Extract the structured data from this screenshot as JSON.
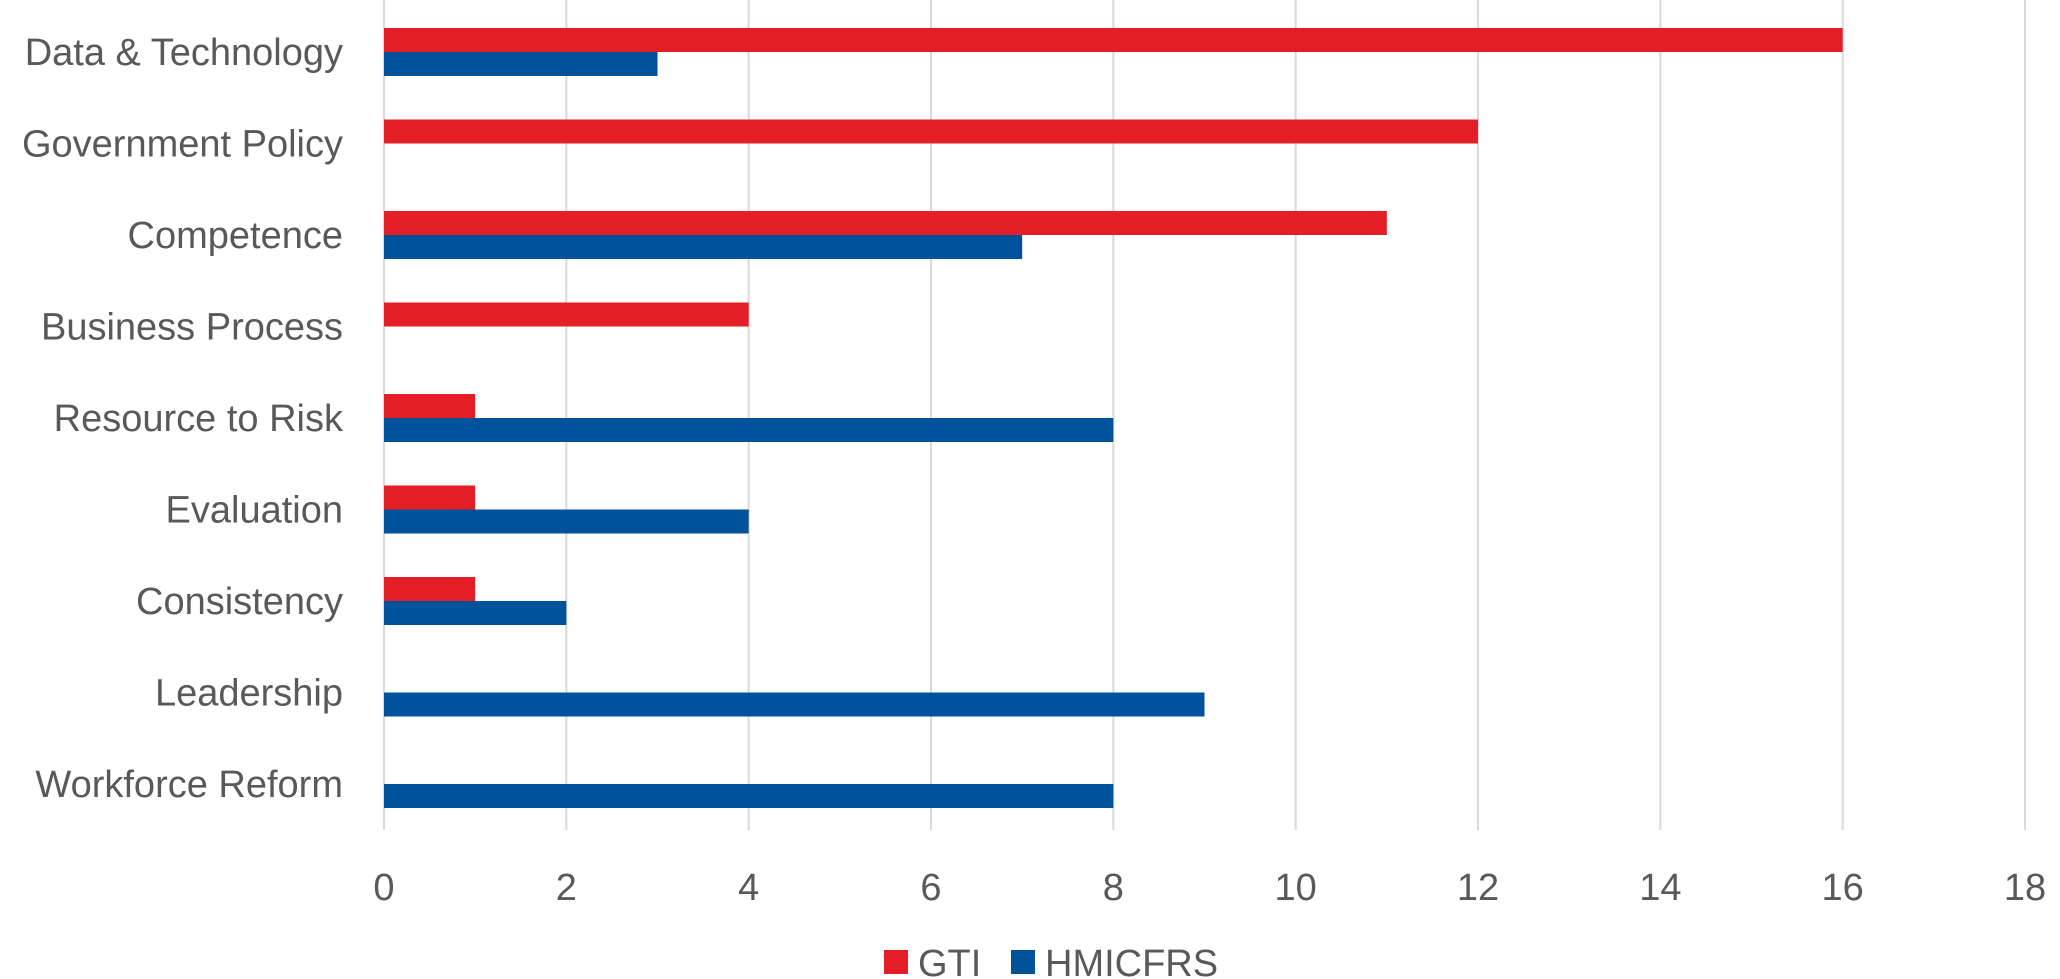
{
  "chart_data": {
    "type": "bar",
    "orientation": "horizontal",
    "title": "",
    "xlabel": "",
    "ylabel": "",
    "categories": [
      "Data & Technology",
      "Government Policy",
      "Competence",
      "Business Process",
      "Resource to Risk",
      "Evaluation",
      "Consistency",
      "Leadership",
      "Workforce Reform"
    ],
    "series": [
      {
        "name": "GTI",
        "color": "#e31e26",
        "values": [
          16,
          12,
          11,
          4,
          1,
          1,
          1,
          0,
          0
        ]
      },
      {
        "name": "HMICFRS",
        "color": "#00529b",
        "values": [
          3,
          0,
          7,
          0,
          8,
          4,
          2,
          9,
          8
        ]
      }
    ],
    "xlim": [
      0,
      18
    ],
    "xticks": [
      0,
      2,
      4,
      6,
      8,
      10,
      12,
      14,
      16,
      18
    ],
    "grid": true,
    "legend_position": "bottom"
  }
}
